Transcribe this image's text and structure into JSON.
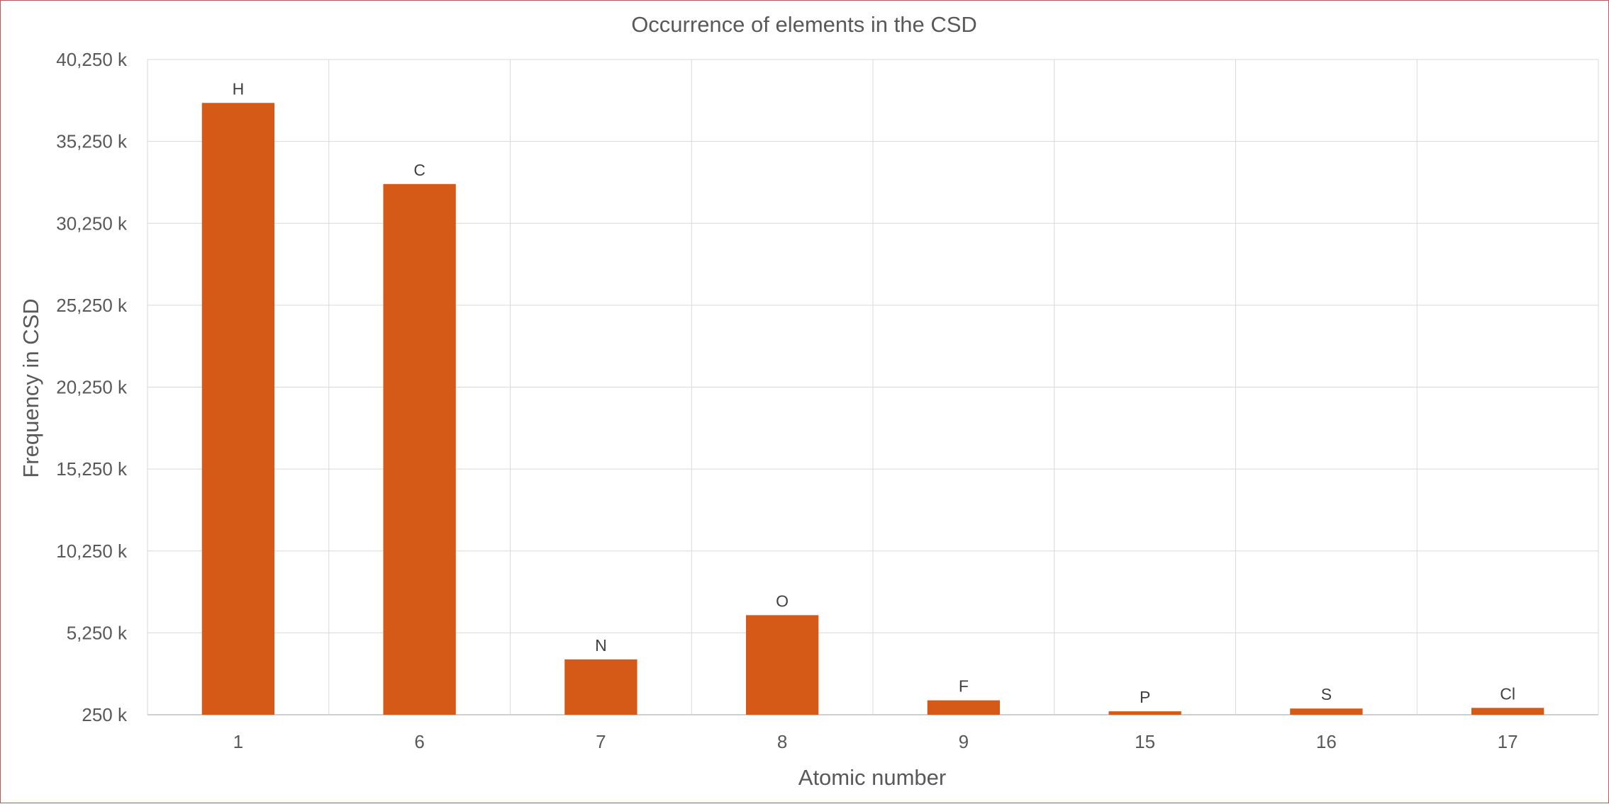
{
  "chart_data": {
    "type": "bar",
    "title": "Occurrence of elements in the CSD",
    "xlabel": "Atomic number",
    "ylabel": "Frequency in CSD",
    "categories": [
      "1",
      "6",
      "7",
      "8",
      "9",
      "15",
      "16",
      "17"
    ],
    "series": [
      {
        "values": [
          37600,
          32650,
          3630,
          6330,
          1130,
          460,
          630,
          670
        ],
        "data_labels": [
          "H",
          "C",
          "N",
          "O",
          "F",
          "P",
          "S",
          "Cl"
        ]
      }
    ],
    "ylim": [
      250,
      40250
    ],
    "yticks": [
      250,
      5250,
      10250,
      15250,
      20250,
      25250,
      30250,
      35250,
      40250
    ],
    "ytick_labels": [
      "250 k",
      "5,250 k",
      "10,250 k",
      "15,250 k",
      "20,250 k",
      "25,250 k",
      "30,250 k",
      "35,250 k",
      "40,250 k"
    ],
    "units": "k",
    "grid": true,
    "legend": "none",
    "bar_color": "#d55a17"
  }
}
